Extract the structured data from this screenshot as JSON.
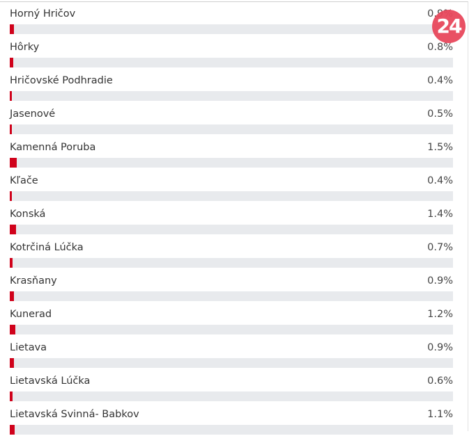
{
  "brand": {
    "logo_text": "24",
    "logo_color": "#e8485c"
  },
  "colors": {
    "bar_fill": "#d0021b",
    "bar_track": "#e8eaed"
  },
  "rows": [
    {
      "name": "Horný Hričov",
      "percent_label": "0.9%",
      "value": 0.9
    },
    {
      "name": "Hôrky",
      "percent_label": "0.8%",
      "value": 0.8
    },
    {
      "name": "Hričovské Podhradie",
      "percent_label": "0.4%",
      "value": 0.4
    },
    {
      "name": "Jasenové",
      "percent_label": "0.5%",
      "value": 0.5
    },
    {
      "name": "Kamenná Poruba",
      "percent_label": "1.5%",
      "value": 1.5
    },
    {
      "name": "Kľače",
      "percent_label": "0.4%",
      "value": 0.4
    },
    {
      "name": "Konská",
      "percent_label": "1.4%",
      "value": 1.4
    },
    {
      "name": "Kotrčiná Lúčka",
      "percent_label": "0.7%",
      "value": 0.7
    },
    {
      "name": "Krasňany",
      "percent_label": "0.9%",
      "value": 0.9
    },
    {
      "name": "Kunerad",
      "percent_label": "1.2%",
      "value": 1.2
    },
    {
      "name": "Lietava",
      "percent_label": "0.9%",
      "value": 0.9
    },
    {
      "name": "Lietavská Lúčka",
      "percent_label": "0.6%",
      "value": 0.6
    },
    {
      "name": "Lietavská Svinná- Babkov",
      "percent_label": "1.1%",
      "value": 1.1
    }
  ]
}
